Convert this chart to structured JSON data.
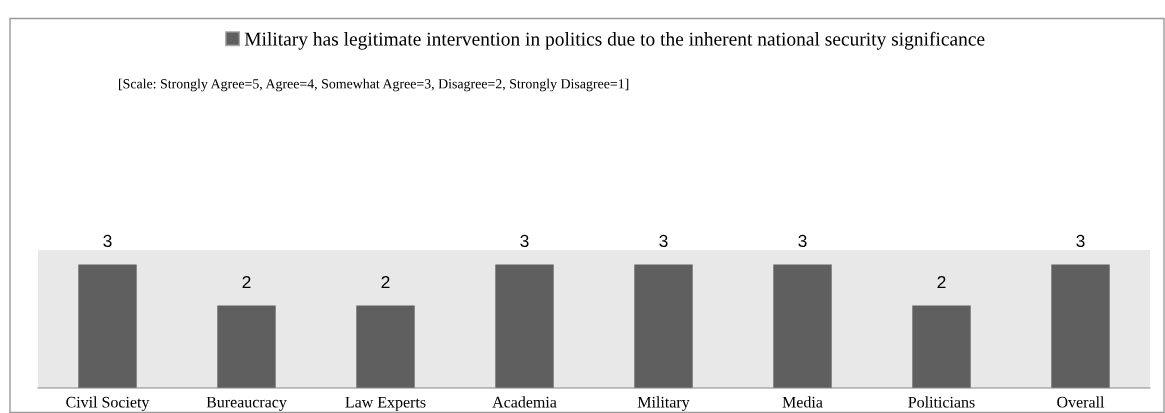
{
  "chart_data": {
    "type": "bar",
    "categories": [
      "Civil Society",
      "Bureaucracy",
      "Law Experts",
      "Academia",
      "Military",
      "Media",
      "Politicians",
      "Overall"
    ],
    "series": [
      {
        "name": "Military has legitimate intervention in politics due to the inherent national security significance",
        "color": "#5f5f5f",
        "values": [
          3,
          2,
          2,
          3,
          3,
          3,
          2,
          3
        ]
      }
    ],
    "ylim": [
      0,
      3.35
    ],
    "data_labels": true,
    "legend": "top",
    "grid": false,
    "annotations": [
      "[Scale: Strongly Agree=5, Agree=4, Somewhat Agree=3, Disagree=2, Strongly Disagree=1]"
    ]
  }
}
